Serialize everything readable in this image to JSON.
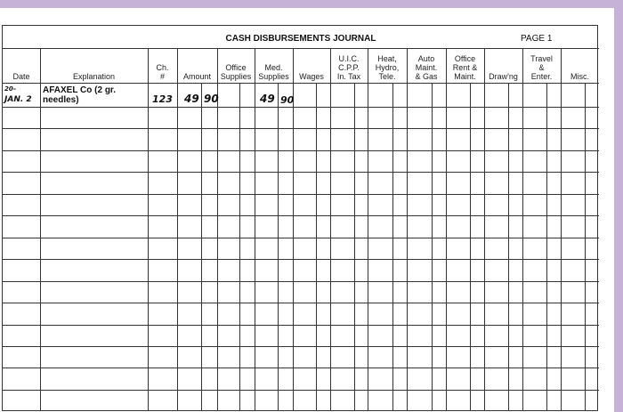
{
  "journal": {
    "title": "CASH DISBURSEMENTS JOURNAL",
    "page_label": "PAGE  1",
    "columns": [
      "Date",
      "Explanation",
      "Ch.\n#",
      "Amount",
      "Office\nSupplies",
      "Med.\nSupplies",
      "Wages",
      "U.I.C.\nC.P.P.\nIn. Tax",
      "Heat,\nHydro,\nTele.",
      "Auto\nMaint.\n& Gas",
      "Office\nRent &\nMaint.",
      "Draw'ng",
      "Travel\n&\nEnter.",
      "Misc."
    ],
    "entries": [
      {
        "year": "20–",
        "date": "JAN. 2",
        "explanation": "AFAXEL Co (2 gr. needles)",
        "cheque": "123",
        "amount_dollars": "49",
        "amount_cents": "90",
        "med_dollars": "49",
        "med_cents": "90"
      }
    ]
  },
  "colors": {
    "accent": "#c6b2d7",
    "lines": "#333333"
  }
}
